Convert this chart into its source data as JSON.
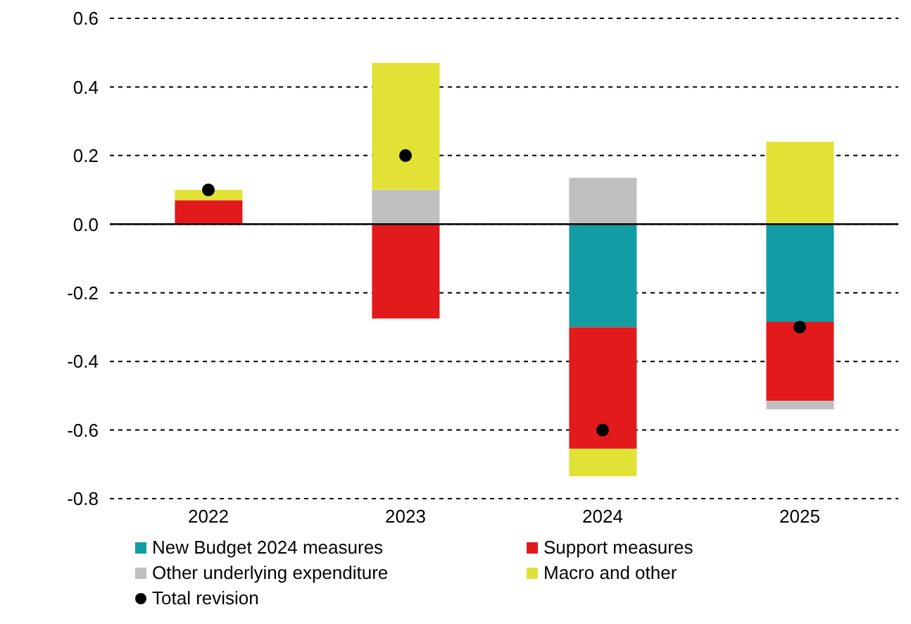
{
  "chart_data": {
    "type": "bar",
    "stacked": true,
    "categories": [
      "2022",
      "2023",
      "2024",
      "2025"
    ],
    "series": [
      {
        "name": "New Budget 2024 measures",
        "color": "#129ca4",
        "values": [
          null,
          null,
          -0.3,
          -0.285
        ]
      },
      {
        "name": "Support measures",
        "color": "#e31a1c",
        "values": [
          0.07,
          -0.275,
          -0.355,
          -0.23
        ]
      },
      {
        "name": "Other underlying expenditure",
        "color": "#bfbfbf",
        "values": [
          null,
          0.1,
          0.135,
          -0.025
        ]
      },
      {
        "name": "Macro and other",
        "color": "#e2e236",
        "values": [
          0.03,
          0.37,
          -0.08,
          0.24
        ]
      },
      {
        "name": "Total revision",
        "type": "scatter",
        "marker": "circle",
        "color": "#000000",
        "values": [
          0.1,
          0.2,
          -0.6,
          -0.3
        ]
      }
    ],
    "ylim": [
      -0.8,
      0.6
    ],
    "yticks": [
      {
        "value": -0.8,
        "label": "-0.8"
      },
      {
        "value": -0.6,
        "label": "-0.6"
      },
      {
        "value": -0.4,
        "label": "-0.4"
      },
      {
        "value": -0.2,
        "label": "-0.2"
      },
      {
        "value": 0,
        "label": "0.0"
      },
      {
        "value": 0.2,
        "label": "0.2"
      },
      {
        "value": 0.4,
        "label": "0.4"
      },
      {
        "value": 0.6,
        "label": "0.6"
      }
    ],
    "grid": "y",
    "legend": "bottom"
  }
}
